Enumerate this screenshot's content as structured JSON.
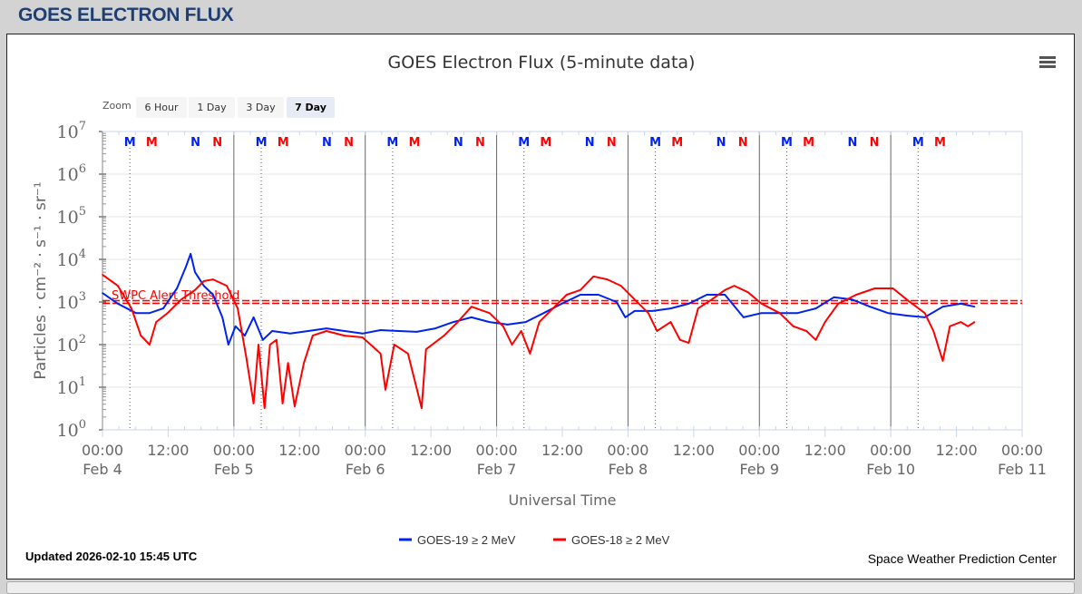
{
  "header": {
    "title": "GOES ELECTRON FLUX"
  },
  "zoom": {
    "label": "Zoom",
    "buttons": [
      "6 Hour",
      "1 Day",
      "3 Day",
      "7 Day"
    ],
    "active": "7 Day"
  },
  "footer": {
    "updated": "Updated 2026-02-10 15:45 UTC",
    "credit": "Space Weather Prediction Center"
  },
  "chart_data": {
    "type": "line",
    "title": "GOES Electron Flux (5-minute data)",
    "xlabel": "Universal Time",
    "ylabel": "Particles · cm⁻² · s⁻¹ · sr⁻¹",
    "yscale": "log",
    "ylim": [
      1,
      10000000
    ],
    "y_ticks": [
      {
        "base": "10",
        "exp": "0"
      },
      {
        "base": "10",
        "exp": "1"
      },
      {
        "base": "10",
        "exp": "2"
      },
      {
        "base": "10",
        "exp": "3"
      },
      {
        "base": "10",
        "exp": "4"
      },
      {
        "base": "10",
        "exp": "5"
      },
      {
        "base": "10",
        "exp": "6"
      },
      {
        "base": "10",
        "exp": "7"
      }
    ],
    "x_unit": "hours since Feb 4 00:00 UTC",
    "xlim": [
      0,
      168
    ],
    "x_ticks": [
      {
        "time": "00:00",
        "date": "Feb 4"
      },
      {
        "time": "12:00",
        "date": ""
      },
      {
        "time": "00:00",
        "date": "Feb 5"
      },
      {
        "time": "12:00",
        "date": ""
      },
      {
        "time": "00:00",
        "date": "Feb 6"
      },
      {
        "time": "12:00",
        "date": ""
      },
      {
        "time": "00:00",
        "date": "Feb 7"
      },
      {
        "time": "12:00",
        "date": ""
      },
      {
        "time": "00:00",
        "date": "Feb 8"
      },
      {
        "time": "12:00",
        "date": ""
      },
      {
        "time": "00:00",
        "date": "Feb 9"
      },
      {
        "time": "12:00",
        "date": ""
      },
      {
        "time": "00:00",
        "date": "Feb 10"
      },
      {
        "time": "12:00",
        "date": ""
      },
      {
        "time": "00:00",
        "date": "Feb 11"
      }
    ],
    "threshold": {
      "label": "SWPC Alert Threshold",
      "value": 1000,
      "color": "#ff0000"
    },
    "markers": [
      {
        "label": "M",
        "sat": "GOES-19",
        "hour": 5.0
      },
      {
        "label": "M",
        "sat": "GOES-18",
        "hour": 9.0
      },
      {
        "label": "N",
        "sat": "GOES-19",
        "hour": 17.0
      },
      {
        "label": "N",
        "sat": "GOES-18",
        "hour": 21.0
      },
      {
        "label": "M",
        "sat": "GOES-19",
        "hour": 29.0
      },
      {
        "label": "M",
        "sat": "GOES-18",
        "hour": 33.0
      },
      {
        "label": "N",
        "sat": "GOES-19",
        "hour": 41.0
      },
      {
        "label": "N",
        "sat": "GOES-18",
        "hour": 45.0
      },
      {
        "label": "M",
        "sat": "GOES-19",
        "hour": 53.0
      },
      {
        "label": "M",
        "sat": "GOES-18",
        "hour": 57.0
      },
      {
        "label": "N",
        "sat": "GOES-19",
        "hour": 65.0
      },
      {
        "label": "N",
        "sat": "GOES-18",
        "hour": 69.0
      },
      {
        "label": "M",
        "sat": "GOES-19",
        "hour": 77.0
      },
      {
        "label": "M",
        "sat": "GOES-18",
        "hour": 81.0
      },
      {
        "label": "N",
        "sat": "GOES-19",
        "hour": 89.0
      },
      {
        "label": "N",
        "sat": "GOES-18",
        "hour": 93.0
      },
      {
        "label": "M",
        "sat": "GOES-19",
        "hour": 101.0
      },
      {
        "label": "M",
        "sat": "GOES-18",
        "hour": 105.0
      },
      {
        "label": "N",
        "sat": "GOES-19",
        "hour": 113.0
      },
      {
        "label": "N",
        "sat": "GOES-18",
        "hour": 117.0
      },
      {
        "label": "M",
        "sat": "GOES-19",
        "hour": 125.0
      },
      {
        "label": "M",
        "sat": "GOES-18",
        "hour": 129.0
      },
      {
        "label": "N",
        "sat": "GOES-19",
        "hour": 137.0
      },
      {
        "label": "N",
        "sat": "GOES-18",
        "hour": 141.0
      },
      {
        "label": "M",
        "sat": "GOES-19",
        "hour": 149.0
      },
      {
        "label": "M",
        "sat": "GOES-18",
        "hour": 153.0
      }
    ],
    "series": [
      {
        "name": "GOES-19 ≥ 2 MeV",
        "color": "#0022ee",
        "hours": [
          0,
          2.8,
          6.1,
          8.6,
          11.1,
          13.6,
          15.2,
          16.1,
          16.9,
          18.5,
          20.2,
          21.9,
          23.0,
          24.3,
          26.0,
          27.6,
          29.3,
          31.0,
          34.3,
          37.6,
          40.9,
          44.2,
          47.5,
          50.8,
          54.1,
          57.4,
          60.8,
          64.1,
          67.4,
          70.7,
          74.0,
          77.3,
          80.6,
          83.9,
          87.3,
          90.6,
          93.9,
          95.5,
          97.2,
          100.5,
          103.8,
          107.1,
          110.4,
          113.7,
          117.1,
          120.4,
          123.7,
          127.0,
          130.3,
          133.6,
          136.9,
          140.2,
          143.5,
          146.9,
          150.2,
          153.5,
          156.8,
          159.3
        ],
        "log10_values": [
          3.21,
          2.96,
          2.74,
          2.74,
          2.85,
          3.32,
          3.81,
          4.13,
          3.7,
          3.38,
          3.17,
          2.64,
          2.0,
          2.43,
          2.21,
          2.64,
          2.11,
          2.32,
          2.26,
          2.32,
          2.38,
          2.32,
          2.26,
          2.34,
          2.32,
          2.3,
          2.38,
          2.53,
          2.64,
          2.53,
          2.47,
          2.53,
          2.74,
          2.96,
          3.17,
          3.17,
          3.0,
          2.64,
          2.79,
          2.79,
          2.85,
          2.96,
          3.17,
          3.17,
          2.64,
          2.74,
          2.74,
          2.74,
          2.85,
          3.11,
          3.06,
          2.89,
          2.74,
          2.68,
          2.64,
          2.89,
          2.96,
          2.89
        ]
      },
      {
        "name": "GOES-18 ≥ 2 MeV",
        "color": "#ff0000",
        "hours": [
          0,
          2.8,
          5.3,
          7.0,
          8.6,
          9.8,
          11.9,
          14.4,
          16.9,
          18.5,
          20.2,
          22.7,
          24.7,
          26.3,
          27.6,
          28.5,
          29.6,
          30.6,
          31.8,
          32.9,
          33.9,
          35.1,
          36.8,
          38.4,
          40.9,
          44.2,
          47.5,
          50.8,
          51.7,
          53.3,
          55.8,
          58.3,
          59.1,
          62.4,
          64.9,
          67.4,
          70.7,
          73.2,
          74.8,
          76.5,
          78.1,
          79.8,
          82.3,
          84.8,
          87.3,
          89.7,
          92.2,
          94.7,
          97.2,
          99.7,
          101.3,
          103.8,
          105.5,
          107.1,
          108.8,
          111.3,
          113.7,
          115.4,
          117.9,
          120.4,
          123.7,
          126.2,
          128.6,
          130.3,
          132.0,
          134.4,
          137.7,
          141.1,
          144.4,
          146.9,
          150.2,
          151.8,
          153.5,
          154.8,
          156.8,
          158.1,
          159.3
        ],
        "log10_values": [
          3.64,
          3.38,
          2.85,
          2.21,
          2.0,
          2.53,
          2.74,
          3.06,
          3.28,
          3.49,
          3.53,
          3.38,
          2.85,
          1.68,
          0.62,
          2.0,
          0.51,
          2.0,
          2.11,
          0.62,
          1.57,
          0.55,
          1.57,
          2.21,
          2.32,
          2.21,
          2.17,
          1.79,
          0.94,
          2.0,
          1.79,
          0.51,
          1.89,
          2.21,
          2.53,
          2.89,
          2.74,
          2.43,
          2.0,
          2.32,
          1.79,
          2.53,
          2.85,
          3.17,
          3.28,
          3.6,
          3.53,
          3.38,
          3.06,
          2.74,
          2.32,
          2.53,
          2.11,
          2.04,
          2.85,
          3.06,
          3.28,
          3.38,
          3.23,
          2.96,
          2.74,
          2.43,
          2.32,
          2.11,
          2.53,
          2.96,
          3.17,
          3.32,
          3.32,
          3.06,
          2.74,
          2.32,
          1.62,
          2.43,
          2.53,
          2.43,
          2.53
        ]
      }
    ],
    "legend": "bottom-center",
    "grid": true
  }
}
